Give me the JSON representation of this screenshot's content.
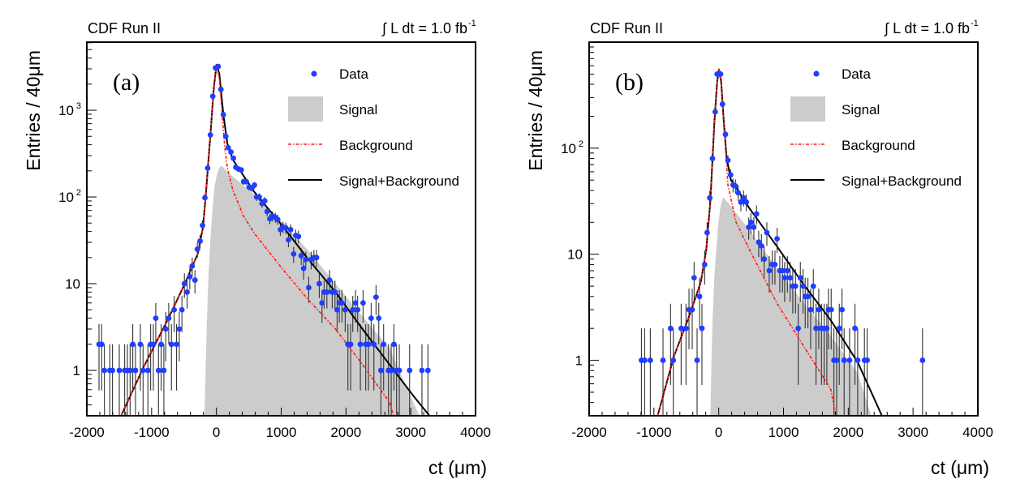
{
  "chart_data": [
    {
      "type": "scatter",
      "panel_label": "(a)",
      "header_left": "CDF Run II",
      "header_right": "∫ L dt = 1.0 fb",
      "header_right_sup": "-1",
      "xlabel": "ct (μm)",
      "ylabel": "Entries / 40μm",
      "xlim": [
        -2000,
        4000
      ],
      "ylim": [
        0.3,
        6100
      ],
      "yscale": "log",
      "grid": false,
      "legend_position": "top-right",
      "x_ticks": [
        "-2000",
        "-1000",
        "0",
        "1000",
        "2000",
        "3000",
        "4000"
      ],
      "y_ticks": [
        {
          "value": 1,
          "label": "1"
        },
        {
          "value": 10,
          "label": "10"
        },
        {
          "value": 100,
          "label": "10",
          "sup": "2"
        },
        {
          "value": 1000,
          "label": "10",
          "sup": "3"
        }
      ],
      "legend": [
        "Data",
        "Signal",
        "Background",
        "Signal+Background"
      ],
      "colors": {
        "data": "#1f3fff",
        "signal": "#cccccc",
        "background": "#ff1a1a",
        "total": "#000000"
      },
      "data": [
        [
          -1812,
          2
        ],
        [
          -1771,
          2
        ],
        [
          -1729,
          1
        ],
        [
          -1645,
          1
        ],
        [
          -1604,
          1
        ],
        [
          -1499,
          1
        ],
        [
          -1416,
          1
        ],
        [
          -1374,
          1
        ],
        [
          -1332,
          1
        ],
        [
          -1291,
          2
        ],
        [
          -1249,
          1
        ],
        [
          -1174,
          2
        ],
        [
          -1132,
          1
        ],
        [
          -1057,
          1
        ],
        [
          -1015,
          2
        ],
        [
          -973,
          2
        ],
        [
          -936,
          4
        ],
        [
          -894,
          1
        ],
        [
          -853,
          2
        ],
        [
          -811,
          1
        ],
        [
          -782,
          3
        ],
        [
          -736,
          4
        ],
        [
          -694,
          2
        ],
        [
          -652,
          5
        ],
        [
          -615,
          2
        ],
        [
          -573,
          3
        ],
        [
          -532,
          5
        ],
        [
          -494,
          10
        ],
        [
          -452,
          8
        ],
        [
          -411,
          12
        ],
        [
          -373,
          16
        ],
        [
          -331,
          11
        ],
        [
          -294,
          25
        ],
        [
          -252,
          31
        ],
        [
          -214,
          47
        ],
        [
          -177,
          98
        ],
        [
          -135,
          215
        ],
        [
          -93,
          520
        ],
        [
          -56,
          1450
        ],
        [
          -14,
          3080
        ],
        [
          28,
          3200
        ],
        [
          70,
          1740
        ],
        [
          107,
          890
        ],
        [
          145,
          500
        ],
        [
          183,
          370
        ],
        [
          224,
          330
        ],
        [
          262,
          280
        ],
        [
          299,
          220
        ],
        [
          341,
          210
        ],
        [
          383,
          205
        ],
        [
          420,
          150
        ],
        [
          462,
          150
        ],
        [
          504,
          130
        ],
        [
          546,
          126
        ],
        [
          587,
          137
        ],
        [
          620,
          100
        ],
        [
          662,
          100
        ],
        [
          704,
          84
        ],
        [
          746,
          90
        ],
        [
          783,
          68
        ],
        [
          825,
          56
        ],
        [
          867,
          60
        ],
        [
          909,
          58
        ],
        [
          946,
          55
        ],
        [
          987,
          42
        ],
        [
          1029,
          45
        ],
        [
          1071,
          44
        ],
        [
          1112,
          32
        ],
        [
          1146,
          42
        ],
        [
          1192,
          22
        ],
        [
          1225,
          36
        ],
        [
          1267,
          35
        ],
        [
          1309,
          21
        ],
        [
          1346,
          15
        ],
        [
          1379,
          19
        ],
        [
          1425,
          9
        ],
        [
          1463,
          19
        ],
        [
          1505,
          20
        ],
        [
          1546,
          20
        ],
        [
          1588,
          10
        ],
        [
          1630,
          6
        ],
        [
          1663,
          8
        ],
        [
          1705,
          8
        ],
        [
          1747,
          11
        ],
        [
          1788,
          8
        ],
        [
          1830,
          8
        ],
        [
          1863,
          5
        ],
        [
          1897,
          6
        ],
        [
          1938,
          6
        ],
        [
          1988,
          5
        ],
        [
          2030,
          2
        ],
        [
          2072,
          2
        ],
        [
          2105,
          5
        ],
        [
          2147,
          6
        ],
        [
          2180,
          5
        ],
        [
          2222,
          2
        ],
        [
          2264,
          6
        ],
        [
          2305,
          2
        ],
        [
          2347,
          2
        ],
        [
          2389,
          4
        ],
        [
          2431,
          2
        ],
        [
          2464,
          7
        ],
        [
          2506,
          4
        ],
        [
          2539,
          1
        ],
        [
          2581,
          2
        ],
        [
          2656,
          1
        ],
        [
          2698,
          1
        ],
        [
          2740,
          2
        ],
        [
          2781,
          1
        ],
        [
          2823,
          1
        ],
        [
          2982,
          1
        ],
        [
          3173,
          1
        ],
        [
          3265,
          1
        ]
      ],
      "signal": [
        [
          -185,
          0.3
        ],
        [
          -150,
          3
        ],
        [
          -123,
          12
        ],
        [
          -90,
          35
        ],
        [
          -60,
          74
        ],
        [
          -30,
          130
        ],
        [
          3,
          175
        ],
        [
          40,
          215
        ],
        [
          78,
          230
        ],
        [
          170,
          195
        ],
        [
          587,
          106
        ],
        [
          1004,
          52
        ],
        [
          1421,
          24
        ],
        [
          1838,
          10
        ],
        [
          2255,
          4.2
        ],
        [
          2672,
          1.8
        ],
        [
          3132,
          0.3
        ]
      ],
      "background": [
        [
          -1470,
          0.3
        ],
        [
          -1124,
          1.09
        ],
        [
          -748,
          3.9
        ],
        [
          -498,
          9.6
        ],
        [
          -289,
          22
        ],
        [
          -206,
          45
        ],
        [
          -164,
          105
        ],
        [
          -93,
          510
        ],
        [
          -39,
          1850
        ],
        [
          3,
          3400
        ],
        [
          45,
          2300
        ],
        [
          65,
          1500
        ],
        [
          128,
          380
        ],
        [
          170,
          215
        ],
        [
          254,
          120
        ],
        [
          420,
          60
        ],
        [
          587,
          38
        ],
        [
          1004,
          15.3
        ],
        [
          1421,
          6.5
        ],
        [
          1838,
          3
        ],
        [
          2255,
          1.17
        ],
        [
          2672,
          0.43
        ],
        [
          2735,
          0.3
        ]
      ],
      "total": [
        [
          -1470,
          0.3
        ],
        [
          -1124,
          1.09
        ],
        [
          -748,
          3.9
        ],
        [
          -498,
          9.6
        ],
        [
          -289,
          22
        ],
        [
          -206,
          45
        ],
        [
          -164,
          105
        ],
        [
          -93,
          510
        ],
        [
          -39,
          1850
        ],
        [
          3,
          3400
        ],
        [
          45,
          2600
        ],
        [
          107,
          900
        ],
        [
          170,
          410
        ],
        [
          254,
          270
        ],
        [
          587,
          114
        ],
        [
          1004,
          48
        ],
        [
          1421,
          19
        ],
        [
          1838,
          8
        ],
        [
          2255,
          3
        ],
        [
          2672,
          1.17
        ],
        [
          3048,
          0.5
        ],
        [
          3290,
          0.3
        ]
      ]
    },
    {
      "type": "scatter",
      "panel_label": "(b)",
      "header_left": "CDF Run II",
      "header_right": "∫ L dt = 1.0 fb",
      "header_right_sup": "-1",
      "xlabel": "ct (μm)",
      "ylabel": "Entries / 40μm",
      "xlim": [
        -2000,
        4000
      ],
      "ylim": [
        0.3,
        1000
      ],
      "yscale": "log",
      "grid": false,
      "legend_position": "top-right",
      "x_ticks": [
        "-2000",
        "-1000",
        "0",
        "1000",
        "2000",
        "3000",
        "4000"
      ],
      "y_ticks": [
        {
          "value": 1,
          "label": "1"
        },
        {
          "value": 10,
          "label": "10"
        },
        {
          "value": 100,
          "label": "10",
          "sup": "2"
        }
      ],
      "legend": [
        "Data",
        "Signal",
        "Background",
        "Signal+Background"
      ],
      "colors": {
        "data": "#1f3fff",
        "signal": "#cccccc",
        "background": "#ff1a1a",
        "total": "#000000"
      },
      "data": [
        [
          -1193,
          1
        ],
        [
          -1143,
          1
        ],
        [
          -1056,
          1
        ],
        [
          -860,
          1
        ],
        [
          -743,
          2
        ],
        [
          -701,
          1
        ],
        [
          -580,
          2
        ],
        [
          -505,
          2
        ],
        [
          -459,
          3
        ],
        [
          -409,
          3
        ],
        [
          -380,
          6
        ],
        [
          -334,
          1
        ],
        [
          -296,
          4
        ],
        [
          -259,
          2
        ],
        [
          -217,
          8
        ],
        [
          -179,
          16
        ],
        [
          -138,
          34
        ],
        [
          -96,
          80
        ],
        [
          -54,
          220
        ],
        [
          -25,
          500
        ],
        [
          0,
          500
        ],
        [
          29,
          500
        ],
        [
          58,
          260
        ],
        [
          104,
          135
        ],
        [
          142,
          77
        ],
        [
          184,
          56
        ],
        [
          221,
          45
        ],
        [
          259,
          44
        ],
        [
          301,
          38
        ],
        [
          342,
          31
        ],
        [
          384,
          34
        ],
        [
          426,
          31
        ],
        [
          463,
          18
        ],
        [
          496,
          20
        ],
        [
          542,
          18
        ],
        [
          584,
          24
        ],
        [
          617,
          13
        ],
        [
          659,
          12
        ],
        [
          701,
          9
        ],
        [
          743,
          16
        ],
        [
          780,
          7
        ],
        [
          826,
          8
        ],
        [
          868,
          8
        ],
        [
          901,
          14
        ],
        [
          943,
          7
        ],
        [
          985,
          7
        ],
        [
          1018,
          6
        ],
        [
          1060,
          7
        ],
        [
          1102,
          6
        ],
        [
          1143,
          5
        ],
        [
          1185,
          5
        ],
        [
          1227,
          2
        ],
        [
          1260,
          6
        ],
        [
          1302,
          5
        ],
        [
          1335,
          4
        ],
        [
          1377,
          4
        ],
        [
          1419,
          3
        ],
        [
          1460,
          5
        ],
        [
          1502,
          2
        ],
        [
          1544,
          3
        ],
        [
          1586,
          2
        ],
        [
          1627,
          2
        ],
        [
          1669,
          2
        ],
        [
          1694,
          3
        ],
        [
          1736,
          3
        ],
        [
          1778,
          1
        ],
        [
          1820,
          1
        ],
        [
          1861,
          2
        ],
        [
          1903,
          3
        ],
        [
          1936,
          1
        ],
        [
          2020,
          1
        ],
        [
          2103,
          2
        ],
        [
          2145,
          1
        ],
        [
          2249,
          1
        ],
        [
          2291,
          1
        ],
        [
          3146,
          1
        ]
      ],
      "signal": [
        [
          -129,
          0.3
        ],
        [
          -100,
          2
        ],
        [
          -67,
          6.2
        ],
        [
          -35,
          12
        ],
        [
          -4,
          20
        ],
        [
          30,
          29
        ],
        [
          71,
          34.5
        ],
        [
          184,
          28.5
        ],
        [
          476,
          16.8
        ],
        [
          893,
          7.4
        ],
        [
          1310,
          3.5
        ],
        [
          1727,
          1.7
        ],
        [
          2145,
          0.76
        ],
        [
          2353,
          0.3
        ]
      ],
      "background": [
        [
          -943,
          0.3
        ],
        [
          -693,
          1.08
        ],
        [
          -442,
          2.75
        ],
        [
          -275,
          5.5
        ],
        [
          -192,
          11
        ],
        [
          -129,
          32
        ],
        [
          -67,
          174
        ],
        [
          -25,
          420
        ],
        [
          4,
          560
        ],
        [
          38,
          400
        ],
        [
          70,
          200
        ],
        [
          100,
          116
        ],
        [
          142,
          45
        ],
        [
          267,
          20
        ],
        [
          476,
          11
        ],
        [
          893,
          3.5
        ],
        [
          1310,
          1.36
        ],
        [
          1727,
          0.54
        ],
        [
          1811,
          0.3
        ]
      ],
      "total": [
        [
          -943,
          0.3
        ],
        [
          -693,
          1.08
        ],
        [
          -442,
          2.75
        ],
        [
          -275,
          5.5
        ],
        [
          -192,
          11
        ],
        [
          -129,
          32
        ],
        [
          -67,
          174
        ],
        [
          -25,
          420
        ],
        [
          4,
          560
        ],
        [
          38,
          420
        ],
        [
          79,
          174
        ],
        [
          121,
          82
        ],
        [
          184,
          51
        ],
        [
          476,
          27
        ],
        [
          893,
          12
        ],
        [
          1310,
          5.2
        ],
        [
          1727,
          2.4
        ],
        [
          2145,
          0.96
        ],
        [
          2520,
          0.3
        ]
      ]
    }
  ]
}
